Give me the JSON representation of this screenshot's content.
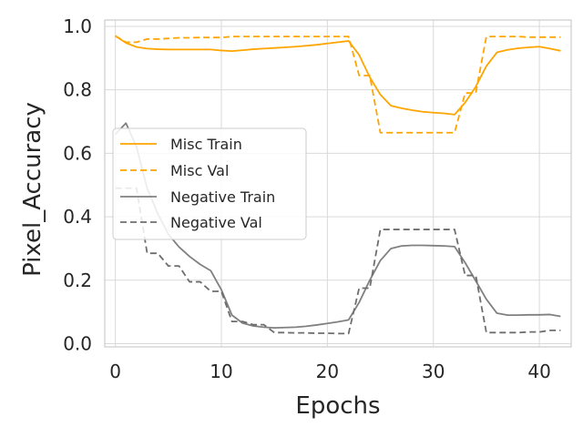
{
  "chart_data": {
    "type": "line",
    "title": "",
    "xlabel": "Epochs",
    "ylabel": "Pixel_Accuracy",
    "xlim": [
      -1,
      43
    ],
    "ylim": [
      -0.01,
      1.02
    ],
    "x_ticks": [
      0,
      10,
      20,
      30,
      40
    ],
    "y_ticks": [
      0.0,
      0.2,
      0.4,
      0.6,
      0.8,
      1.0
    ],
    "x_tick_labels": [
      "0",
      "10",
      "20",
      "30",
      "40"
    ],
    "y_tick_labels": [
      "0.0",
      "0.2",
      "0.4",
      "0.6",
      "0.8",
      "1.0"
    ],
    "grid": true,
    "legend_position": "center-left",
    "x": [
      0,
      1,
      2,
      3,
      4,
      5,
      6,
      7,
      8,
      9,
      10,
      11,
      12,
      13,
      14,
      15,
      16,
      17,
      18,
      19,
      20,
      21,
      22,
      23,
      24,
      25,
      26,
      27,
      28,
      29,
      30,
      31,
      32,
      33,
      34,
      35,
      36,
      37,
      38,
      39,
      40,
      41,
      42
    ],
    "series": [
      {
        "name": "Misc Train",
        "color": "#FFA500",
        "dash": "solid",
        "values": [
          0.97,
          0.948,
          0.935,
          0.93,
          0.928,
          0.927,
          0.927,
          0.927,
          0.927,
          0.927,
          0.924,
          0.922,
          0.925,
          0.928,
          0.93,
          0.932,
          0.934,
          0.936,
          0.939,
          0.942,
          0.946,
          0.95,
          0.954,
          0.91,
          0.84,
          0.785,
          0.75,
          0.742,
          0.736,
          0.731,
          0.728,
          0.726,
          0.722,
          0.76,
          0.81,
          0.875,
          0.918,
          0.926,
          0.931,
          0.934,
          0.936,
          0.93,
          0.923
        ]
      },
      {
        "name": "Misc Val",
        "color": "#FFA500",
        "dash": "dashed",
        "values": [
          0.97,
          0.95,
          0.95,
          0.96,
          0.96,
          0.962,
          0.964,
          0.964,
          0.965,
          0.965,
          0.965,
          0.968,
          0.968,
          0.968,
          0.968,
          0.968,
          0.968,
          0.968,
          0.968,
          0.968,
          0.968,
          0.968,
          0.968,
          0.845,
          0.845,
          0.665,
          0.665,
          0.665,
          0.665,
          0.665,
          0.665,
          0.665,
          0.665,
          0.79,
          0.79,
          0.968,
          0.968,
          0.968,
          0.968,
          0.966,
          0.966,
          0.966,
          0.966
        ]
      },
      {
        "name": "Negative Train",
        "color": "#808080",
        "dash": "solid",
        "values": [
          0.66,
          0.695,
          0.62,
          0.49,
          0.41,
          0.345,
          0.305,
          0.275,
          0.25,
          0.23,
          0.17,
          0.09,
          0.065,
          0.056,
          0.052,
          0.05,
          0.051,
          0.052,
          0.055,
          0.059,
          0.064,
          0.069,
          0.075,
          0.13,
          0.2,
          0.262,
          0.3,
          0.308,
          0.31,
          0.31,
          0.309,
          0.308,
          0.306,
          0.255,
          0.198,
          0.14,
          0.096,
          0.09,
          0.09,
          0.091,
          0.091,
          0.092,
          0.086
        ]
      },
      {
        "name": "Negative Val",
        "color": "#6e6e6e",
        "dash": "dashed",
        "values": [
          0.49,
          0.49,
          0.49,
          0.285,
          0.285,
          0.245,
          0.245,
          0.195,
          0.195,
          0.165,
          0.165,
          0.07,
          0.07,
          0.06,
          0.06,
          0.035,
          0.035,
          0.034,
          0.034,
          0.033,
          0.033,
          0.032,
          0.032,
          0.175,
          0.175,
          0.36,
          0.36,
          0.36,
          0.36,
          0.36,
          0.36,
          0.36,
          0.36,
          0.215,
          0.215,
          0.035,
          0.035,
          0.035,
          0.035,
          0.037,
          0.037,
          0.042,
          0.042
        ]
      }
    ],
    "colors": {
      "grid": "#d9d9d9",
      "frame": "#cccccc",
      "text": "#262626",
      "legend_border": "#cccccc",
      "legend_bg": "#ffffff"
    }
  }
}
